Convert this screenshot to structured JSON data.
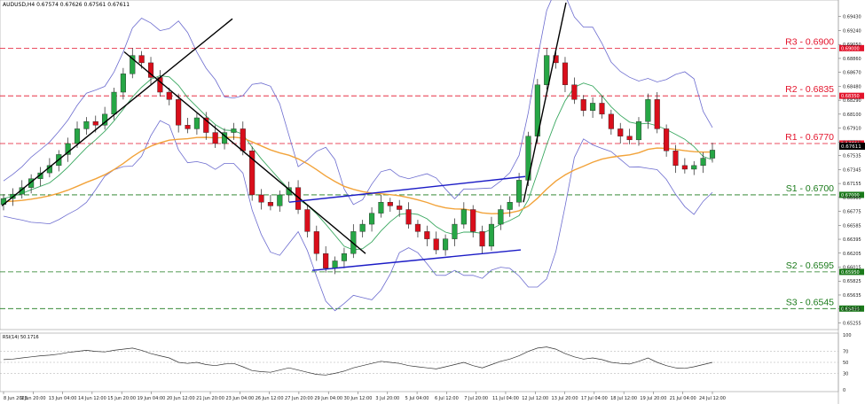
{
  "chart_data": {
    "type": "candlestick",
    "symbol_header": "AUDUSD,H4  0.67574 0.67626 0.67561 0.67611",
    "price_axis_ticks": [
      "0.69430",
      "0.69240",
      "0.69050",
      "0.68860",
      "0.68670",
      "0.68480",
      "0.68290",
      "0.68100",
      "0.67910",
      "0.67720",
      "0.67535",
      "0.67345",
      "0.67155",
      "0.66965",
      "0.66775",
      "0.66585",
      "0.66395",
      "0.66205",
      "0.66015",
      "0.65825",
      "0.65635",
      "0.65445",
      "0.65255"
    ],
    "ylim": [
      0.652,
      0.6962
    ],
    "time_axis_labels": [
      "8 Jun 2023",
      "9 Jun 20:00",
      "13 Jun 04:00",
      "14 Jun 12:00",
      "15 Jun 20:00",
      "19 Jun 04:00",
      "20 Jun 12:00",
      "21 Jun 20:00",
      "23 Jun 04:00",
      "26 Jun 12:00",
      "27 Jun 20:00",
      "29 Jun 04:00",
      "30 Jun 12:00",
      "3 Jul 20:00",
      "5 Jul 04:00",
      "6 Jul 12:00",
      "7 Jul 20:00",
      "11 Jul 04:00",
      "12 Jul 12:00",
      "13 Jul 20:00",
      "17 Jul 04:00",
      "18 Jul 12:00",
      "19 Jul 20:00",
      "21 Jul 04:00",
      "24 Jul 12:00"
    ],
    "current_price_label": "0.67611",
    "levels": [
      {
        "name": "R3 - 0.6900",
        "tag": "0.69000",
        "value": 0.69,
        "kind": "resistance"
      },
      {
        "name": "R2 - 0.6835",
        "tag": "0.68350",
        "value": 0.6835,
        "kind": "resistance"
      },
      {
        "name": "R1 - 0.6770",
        "tag": "0.67700",
        "value": 0.677,
        "kind": "resistance"
      },
      {
        "name": "S1 - 0.6700",
        "tag": "0.67000",
        "value": 0.67,
        "kind": "support"
      },
      {
        "name": "S2 - 0.6595",
        "tag": "0.65950",
        "value": 0.6595,
        "kind": "support"
      },
      {
        "name": "S3 - 0.6545",
        "tag": "0.65450",
        "value": 0.6545,
        "kind": "support"
      }
    ],
    "close_path": [
      0.6695,
      0.6701,
      0.671,
      0.6722,
      0.673,
      0.674,
      0.6755,
      0.677,
      0.679,
      0.68,
      0.6795,
      0.681,
      0.684,
      0.6865,
      0.689,
      0.688,
      0.686,
      0.684,
      0.683,
      0.6795,
      0.679,
      0.6805,
      0.6785,
      0.677,
      0.6785,
      0.679,
      0.676,
      0.67,
      0.669,
      0.6685,
      0.67,
      0.671,
      0.668,
      0.665,
      0.662,
      0.66,
      0.661,
      0.662,
      0.665,
      0.666,
      0.6675,
      0.669,
      0.6685,
      0.668,
      0.666,
      0.665,
      0.664,
      0.6625,
      0.664,
      0.666,
      0.668,
      0.665,
      0.663,
      0.666,
      0.668,
      0.669,
      0.672,
      0.678,
      0.685,
      0.689,
      0.688,
      0.685,
      0.683,
      0.6815,
      0.6825,
      0.681,
      0.679,
      0.678,
      0.6775,
      0.68,
      0.683,
      0.679,
      0.676,
      0.674,
      0.6735,
      0.674,
      0.675,
      0.6761
    ],
    "upper_channel_label": "",
    "rsi": {
      "label": "RSI(14) 50.1716",
      "ticks": [
        "100",
        "70",
        "50",
        "30",
        "0"
      ],
      "levels": [
        70,
        50,
        30
      ],
      "values": [
        55,
        56,
        58,
        60,
        62,
        63,
        65,
        68,
        70,
        72,
        70,
        69,
        72,
        74,
        76,
        72,
        66,
        62,
        58,
        50,
        48,
        50,
        46,
        44,
        47,
        48,
        42,
        35,
        33,
        32,
        36,
        40,
        36,
        32,
        28,
        27,
        30,
        34,
        40,
        44,
        48,
        52,
        50,
        48,
        44,
        42,
        40,
        38,
        42,
        46,
        50,
        44,
        40,
        46,
        52,
        56,
        62,
        70,
        76,
        78,
        74,
        66,
        60,
        56,
        58,
        55,
        50,
        48,
        47,
        52,
        58,
        50,
        44,
        40,
        39,
        42,
        46,
        50
      ]
    },
    "colors": {
      "resistance": "#e3132b",
      "support": "#1a7a1a",
      "bull": "#26a645",
      "bear": "#d90e1b",
      "bollinger": "#6c6ccf",
      "ma_green": "#3aa860",
      "ma_orange": "#f2a33a",
      "trendline": "#000000",
      "channel": "#1c1cc6"
    }
  }
}
